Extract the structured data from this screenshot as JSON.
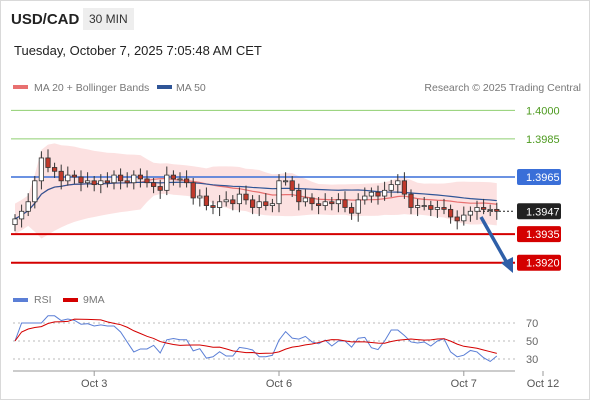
{
  "header": {
    "symbol": "USD/CAD",
    "timeframe": "30 MIN",
    "datetime": "Tuesday, October 7, 2025 7:05:48 AM CET",
    "watermark": "Research © 2025 Trading Central"
  },
  "colors": {
    "candle_up": "#ffffff",
    "candle_down": "#c0392b",
    "wick": "#333333",
    "ma20": "#e87070",
    "bollinger_fill": "#fbdcdc",
    "ma50": "#2f5597",
    "resistance": "#8fcf70",
    "pivot": "#3a6fd8",
    "support": "#d40000",
    "current": "#222222",
    "rsi": "#5b7fd6",
    "rsi_ma": "#d40000",
    "arrow": "#2f5fa8"
  },
  "chart_data": [
    {
      "type": "candlestick",
      "title": "",
      "legend": [
        {
          "name": "MA 20 + Bollinger Bands",
          "color": "#e87070"
        },
        {
          "name": "MA 50",
          "color": "#2f5597"
        }
      ],
      "x_ticks": [
        {
          "label": "Oct 3",
          "index": 12
        },
        {
          "label": "Oct 6",
          "index": 40
        },
        {
          "label": "Oct 7",
          "index": 68
        },
        {
          "label": "Oct 12",
          "index": 80
        }
      ],
      "ylim": [
        1.39125,
        1.4007
      ],
      "levels": [
        {
          "label": "1.4000",
          "value": 1.4,
          "kind": "resistance"
        },
        {
          "label": "1.3985",
          "value": 1.3985,
          "kind": "resistance"
        },
        {
          "label": "1.3965",
          "value": 1.3965,
          "kind": "pivot"
        },
        {
          "label": "1.3947",
          "value": 1.3947,
          "kind": "current"
        },
        {
          "label": "1.3935",
          "value": 1.3935,
          "kind": "support"
        },
        {
          "label": "1.3920",
          "value": 1.392,
          "kind": "support"
        }
      ],
      "closes": [
        1.3943,
        1.3947,
        1.3952,
        1.3963,
        1.3975,
        1.397,
        1.3968,
        1.3963,
        1.3966,
        1.3965,
        1.3962,
        1.3963,
        1.3961,
        1.3963,
        1.3962,
        1.3966,
        1.3963,
        1.3962,
        1.3966,
        1.3964,
        1.3962,
        1.396,
        1.3958,
        1.3966,
        1.3964,
        1.3964,
        1.3962,
        1.3954,
        1.3955,
        1.395,
        1.3949,
        1.3952,
        1.3953,
        1.3951,
        1.3956,
        1.3953,
        1.3949,
        1.3952,
        1.395,
        1.3951,
        1.3963,
        1.3963,
        1.3958,
        1.3952,
        1.3954,
        1.3951,
        1.395,
        1.3952,
        1.3951,
        1.3953,
        1.3949,
        1.3946,
        1.3953,
        1.3955,
        1.3957,
        1.3955,
        1.3958,
        1.3961,
        1.3963,
        1.3956,
        1.3949,
        1.395,
        1.395,
        1.3948,
        1.3949,
        1.3948,
        1.3944,
        1.3942,
        1.3945,
        1.3947,
        1.3949,
        1.3948,
        1.3948,
        1.3947
      ],
      "rsi_panel": {
        "legend": [
          {
            "name": "RSI",
            "color": "#5b7fd6"
          },
          {
            "name": "9MA",
            "color": "#d40000"
          }
        ],
        "ylim": [
          20,
          80
        ],
        "levels": [
          70,
          50,
          30
        ]
      }
    }
  ]
}
